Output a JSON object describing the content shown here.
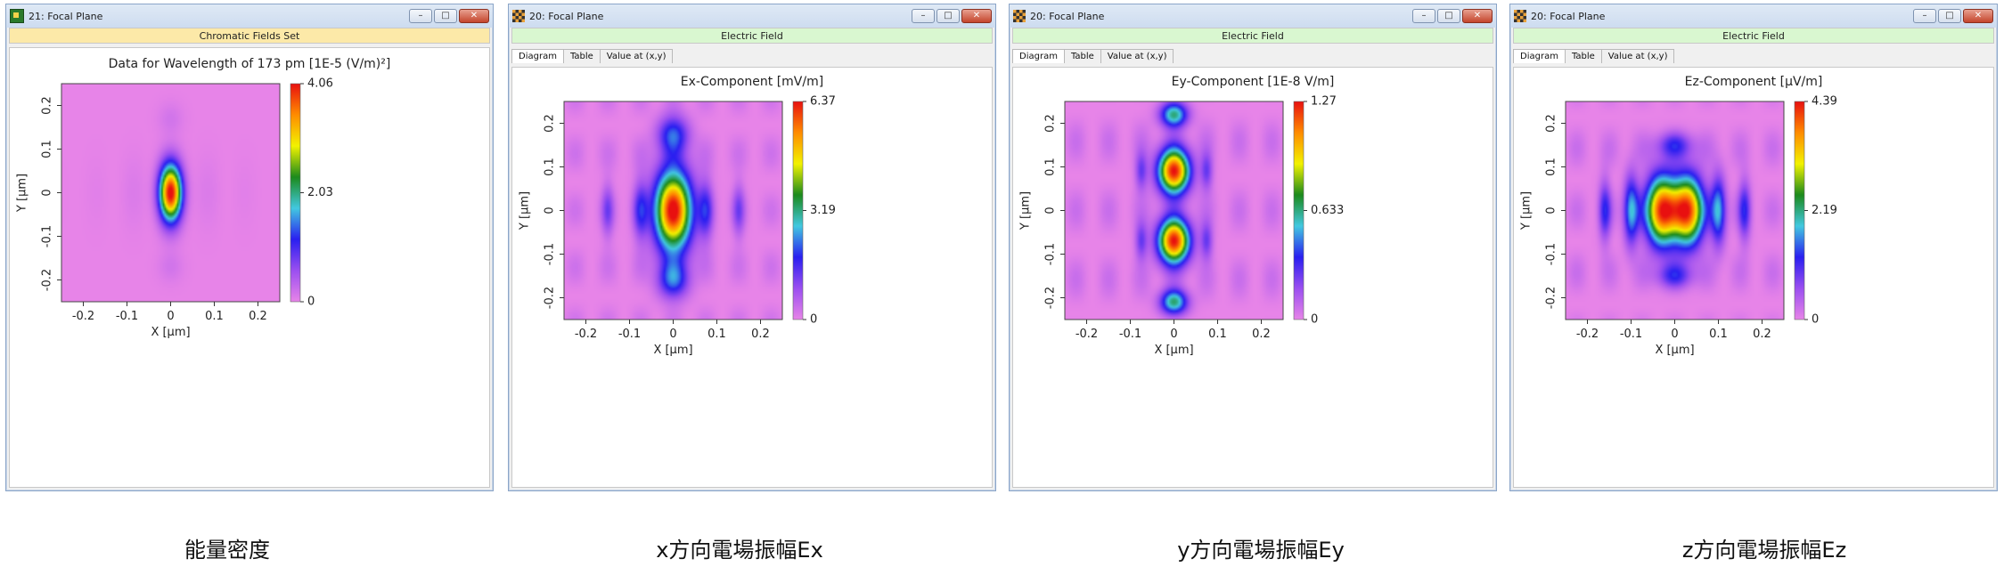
{
  "windows": [
    {
      "title": "21: Focal Plane",
      "icon": "energy-density-icon",
      "subheader": "Chromatic Fields Set",
      "subheader_color": "#fce9a8",
      "tabs": [],
      "chart_data": {
        "type": "heatmap",
        "title": "Data for Wavelength of 173 pm  [1E-5 (V/m)²]",
        "xlabel": "X [µm]",
        "ylabel": "Y [µm]",
        "xlim": [
          -0.25,
          0.25
        ],
        "ylim": [
          -0.25,
          0.25
        ],
        "x_ticks": [
          "-0.2",
          "-0.1",
          "0",
          "0.1",
          "0.2"
        ],
        "y_ticks": [
          "-0.2",
          "-0.1",
          "0",
          "0.1",
          "0.2"
        ],
        "colorbar_ticks": [
          "4.06",
          "2.03",
          "0"
        ],
        "colorbar_max": 4.06,
        "pattern": "energy"
      }
    },
    {
      "title": "20: Focal Plane",
      "icon": "electric-field-icon",
      "subheader": "Electric Field",
      "subheader_color": "#d9f7d0",
      "tabs": [
        "Diagram",
        "Table",
        "Value at (x,y)"
      ],
      "chart_data": {
        "type": "heatmap",
        "title": "Ex-Component  [mV/m]",
        "xlabel": "X [µm]",
        "ylabel": "Y [µm]",
        "xlim": [
          -0.25,
          0.25
        ],
        "ylim": [
          -0.25,
          0.25
        ],
        "x_ticks": [
          "-0.2",
          "-0.1",
          "0",
          "0.1",
          "0.2"
        ],
        "y_ticks": [
          "-0.2",
          "-0.1",
          "0",
          "0.1",
          "0.2"
        ],
        "colorbar_ticks": [
          "6.37",
          "3.19",
          "0"
        ],
        "colorbar_max": 6.37,
        "pattern": "ex"
      }
    },
    {
      "title": "20: Focal Plane",
      "icon": "electric-field-icon",
      "subheader": "Electric Field",
      "subheader_color": "#d9f7d0",
      "tabs": [
        "Diagram",
        "Table",
        "Value at (x,y)"
      ],
      "chart_data": {
        "type": "heatmap",
        "title": "Ey-Component  [1E-8 V/m]",
        "xlabel": "X [µm]",
        "ylabel": "Y [µm]",
        "xlim": [
          -0.25,
          0.25
        ],
        "ylim": [
          -0.25,
          0.25
        ],
        "x_ticks": [
          "-0.2",
          "-0.1",
          "0",
          "0.1",
          "0.2"
        ],
        "y_ticks": [
          "-0.2",
          "-0.1",
          "0",
          "0.1",
          "0.2"
        ],
        "colorbar_ticks": [
          "1.27",
          "0.633",
          "0"
        ],
        "colorbar_max": 1.27,
        "pattern": "ey"
      }
    },
    {
      "title": "20: Focal Plane",
      "icon": "electric-field-icon",
      "subheader": "Electric Field",
      "subheader_color": "#d9f7d0",
      "tabs": [
        "Diagram",
        "Table",
        "Value at (x,y)"
      ],
      "chart_data": {
        "type": "heatmap",
        "title": "Ez-Component  [µV/m]",
        "xlabel": "X [µm]",
        "ylabel": "Y [µm]",
        "xlim": [
          -0.25,
          0.25
        ],
        "ylim": [
          -0.25,
          0.25
        ],
        "x_ticks": [
          "-0.2",
          "-0.1",
          "0",
          "0.1",
          "0.2"
        ],
        "y_ticks": [
          "-0.2",
          "-0.1",
          "0",
          "0.1",
          "0.2"
        ],
        "colorbar_ticks": [
          "4.39",
          "2.19",
          "0"
        ],
        "colorbar_max": 4.39,
        "pattern": "ez"
      }
    }
  ],
  "captions": [
    "能量密度",
    "x方向電場振幅Ex",
    "y方向電場振幅Ey",
    "z方向電場振幅Ez"
  ],
  "window_buttons": {
    "minimize": "–",
    "maximize": "□",
    "close": "✕"
  },
  "colormap": [
    "#e784e8",
    "#9b4ff0",
    "#2a1ff0",
    "#42c8e0",
    "#1c8a1c",
    "#f2f200",
    "#ff8c00",
    "#e81010"
  ]
}
